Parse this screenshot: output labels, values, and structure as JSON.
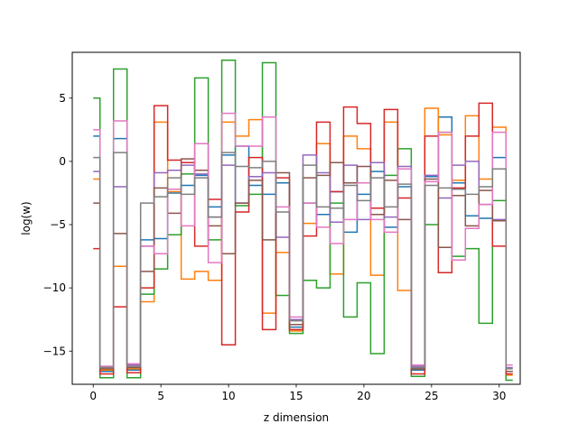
{
  "chart_data": {
    "type": "line",
    "step": "mid",
    "xlabel": "z dimension",
    "ylabel": "log(w)",
    "xlim": [
      -1.55,
      31.55
    ],
    "ylim": [
      -17.62,
      8.62
    ],
    "x_ticks": [
      0,
      5,
      10,
      15,
      20,
      25,
      30
    ],
    "x_tick_labels": [
      "0",
      "5",
      "10",
      "15",
      "20",
      "25",
      "30"
    ],
    "y_ticks": [
      -15,
      -10,
      -5,
      0,
      5
    ],
    "y_tick_labels": [
      "−15",
      "−10",
      "−5",
      "0",
      "5"
    ],
    "x": [
      0,
      1,
      2,
      3,
      4,
      5,
      6,
      7,
      8,
      9,
      10,
      11,
      12,
      13,
      14,
      15,
      16,
      17,
      18,
      19,
      20,
      21,
      22,
      23,
      24,
      25,
      26,
      27,
      28,
      29,
      30,
      31
    ],
    "series": [
      {
        "color": "#1f77b4",
        "values": [
          2.0,
          -16.6,
          1.8,
          -16.5,
          -6.2,
          -6.1,
          -2.5,
          -1.9,
          -1.1,
          -3.6,
          0.5,
          1.2,
          -1.9,
          -2.6,
          -1.7,
          -13.1,
          -3.3,
          -4.2,
          -2.4,
          -5.6,
          -2.6,
          -0.8,
          -5.2,
          -2.0,
          -16.5,
          -1.2,
          3.5,
          -1.7,
          -4.3,
          -4.5,
          0.3,
          -16.6
        ]
      },
      {
        "color": "#ff7f0e",
        "values": [
          -1.4,
          -16.5,
          -8.3,
          -16.4,
          -11.1,
          3.1,
          -2.4,
          -9.3,
          -8.7,
          -9.4,
          3.1,
          2.0,
          3.3,
          -12.0,
          -7.2,
          -13.4,
          -4.9,
          1.4,
          -8.9,
          2.0,
          1.0,
          -9.0,
          3.1,
          -10.2,
          -16.4,
          4.2,
          2.1,
          -1.5,
          3.6,
          -1.4,
          2.7,
          -16.9
        ]
      },
      {
        "color": "#2ca02c",
        "values": [
          5.0,
          -17.1,
          7.3,
          -17.1,
          -10.5,
          -8.5,
          -5.8,
          -1.0,
          6.6,
          -6.2,
          8.0,
          -3.5,
          -2.6,
          7.8,
          -10.6,
          -13.6,
          -9.4,
          -10.0,
          -3.3,
          -12.3,
          -9.6,
          -15.2,
          -1.1,
          1.0,
          -17.0,
          -5.0,
          2.3,
          -7.5,
          -6.9,
          -12.8,
          -3.1,
          -17.3
        ]
      },
      {
        "color": "#d62728",
        "values": [
          -6.9,
          -16.8,
          -11.5,
          -16.7,
          -10.0,
          4.4,
          0.1,
          -0.1,
          -6.7,
          -3.0,
          -14.5,
          -4.0,
          0.3,
          -13.3,
          -1.3,
          -13.3,
          -5.9,
          3.1,
          -2.4,
          4.3,
          3.0,
          -3.7,
          4.1,
          -2.9,
          -16.8,
          2.0,
          -8.8,
          -2.1,
          2.0,
          4.6,
          -6.7,
          -16.8
        ]
      },
      {
        "color": "#9467bd",
        "values": [
          -0.8,
          -16.2,
          -2.0,
          -16.1,
          -6.7,
          -0.9,
          -0.7,
          -0.3,
          -1.0,
          -4.4,
          -0.3,
          -3.3,
          -1.2,
          -0.9,
          -6.0,
          -12.5,
          0.5,
          -0.9,
          -4.8,
          -0.3,
          -4.6,
          -0.1,
          -4.4,
          -0.4,
          -16.2,
          -1.1,
          -2.9,
          -0.3,
          0.0,
          -3.4,
          -4.6,
          -16.3
        ]
      },
      {
        "color": "#8c564b",
        "values": [
          -3.3,
          -16.4,
          -5.7,
          -16.3,
          -8.7,
          -2.1,
          -4.1,
          0.2,
          -0.7,
          -5.1,
          -7.3,
          -3.3,
          -1.5,
          -6.2,
          -0.9,
          -12.9,
          -1.3,
          -1.1,
          -0.1,
          -1.7,
          -0.4,
          -4.2,
          -1.5,
          -4.6,
          -16.4,
          -1.4,
          -6.8,
          -2.7,
          -5.1,
          -2.3,
          -4.7,
          -16.6
        ]
      },
      {
        "color": "#e377c2",
        "values": [
          2.5,
          -16.2,
          3.2,
          -16.0,
          -6.7,
          -7.3,
          -2.2,
          -5.1,
          1.4,
          -8.0,
          3.8,
          1.2,
          1.2,
          3.5,
          -3.6,
          -12.3,
          -3.3,
          -5.2,
          -6.5,
          -4.6,
          -1.7,
          -4.6,
          -5.6,
          -0.6,
          -16.1,
          -1.6,
          2.3,
          -7.8,
          -5.3,
          -3.4,
          2.3,
          -16.1
        ]
      },
      {
        "color": "#7f7f7f",
        "values": [
          0.3,
          -16.3,
          0.7,
          -16.2,
          -3.3,
          -2.8,
          -1.3,
          -2.6,
          -1.3,
          -4.4,
          0.7,
          -0.4,
          -0.5,
          0.0,
          -4.0,
          -12.6,
          -0.3,
          -3.6,
          -3.7,
          -1.9,
          -3.1,
          -1.3,
          -3.6,
          -1.8,
          -16.3,
          -1.9,
          -2.1,
          -2.2,
          -2.6,
          -2.0,
          -0.6,
          -16.4
        ]
      }
    ]
  }
}
